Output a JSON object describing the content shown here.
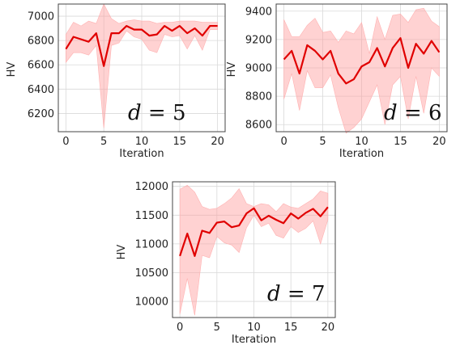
{
  "colors": {
    "mean_line": "#e00000",
    "band": "#ff9c9c"
  },
  "chart_data": [
    {
      "type": "line",
      "annotation": "d = 5",
      "xlabel": "Iteration",
      "ylabel": "HV",
      "xlim": [
        -1,
        21
      ],
      "ylim": [
        6050,
        7100
      ],
      "xticks": [
        0,
        5,
        10,
        15,
        20
      ],
      "yticks": [
        6200,
        6400,
        6600,
        6800,
        7000
      ],
      "grid": true,
      "x": [
        0,
        1,
        2,
        3,
        4,
        5,
        6,
        7,
        8,
        9,
        10,
        11,
        12,
        13,
        14,
        15,
        16,
        17,
        18,
        19,
        20
      ],
      "series": [
        {
          "values": [
            6730,
            6830,
            6810,
            6790,
            6860,
            6590,
            6860,
            6860,
            6920,
            6890,
            6890,
            6840,
            6850,
            6920,
            6880,
            6920,
            6860,
            6900,
            6840,
            6920,
            6920
          ]
        }
      ],
      "band_upper": [
        6850,
        6950,
        6920,
        6960,
        6940,
        7100,
        6980,
        6940,
        6960,
        6970,
        6960,
        6960,
        6940,
        6950,
        6950,
        6960,
        6960,
        6960,
        6950,
        6950,
        6950
      ],
      "band_lower": [
        6620,
        6700,
        6700,
        6680,
        6760,
        6080,
        6760,
        6780,
        6880,
        6830,
        6810,
        6720,
        6700,
        6850,
        6830,
        6840,
        6730,
        6840,
        6720,
        6890,
        6890
      ]
    },
    {
      "type": "line",
      "annotation": "d = 6",
      "xlabel": "Iteration",
      "ylabel": "HV",
      "xlim": [
        -1,
        21
      ],
      "ylim": [
        8550,
        9450
      ],
      "xticks": [
        0,
        5,
        10,
        15,
        20
      ],
      "yticks": [
        8600,
        8800,
        9000,
        9200,
        9400
      ],
      "grid": true,
      "x": [
        0,
        1,
        2,
        3,
        4,
        5,
        6,
        7,
        8,
        9,
        10,
        11,
        12,
        13,
        14,
        15,
        16,
        17,
        18,
        19,
        20
      ],
      "series": [
        {
          "values": [
            9060,
            9120,
            8960,
            9160,
            9120,
            9060,
            9120,
            8960,
            8890,
            8920,
            9010,
            9040,
            9140,
            9010,
            9140,
            9210,
            9000,
            9170,
            9100,
            9190,
            9110
          ]
        }
      ],
      "band_upper": [
        9340,
        9220,
        9220,
        9300,
        9350,
        9250,
        9260,
        9180,
        9260,
        9240,
        9320,
        9100,
        9360,
        9200,
        9370,
        9380,
        9320,
        9410,
        9420,
        9330,
        9290
      ],
      "band_lower": [
        8780,
        8960,
        8700,
        8980,
        8860,
        8860,
        8950,
        8720,
        8540,
        8580,
        8640,
        8760,
        8880,
        8600,
        8880,
        8940,
        8640,
        8940,
        8680,
        9000,
        8940
      ]
    },
    {
      "type": "line",
      "annotation": "d = 7",
      "xlabel": "Iteration",
      "ylabel": "HV",
      "xlim": [
        -1,
        21
      ],
      "ylim": [
        9720,
        12080
      ],
      "xticks": [
        0,
        5,
        10,
        15,
        20
      ],
      "yticks": [
        10000,
        10500,
        11000,
        11500,
        12000
      ],
      "grid": true,
      "x": [
        0,
        1,
        2,
        3,
        4,
        5,
        6,
        7,
        8,
        9,
        10,
        11,
        12,
        13,
        14,
        15,
        16,
        17,
        18,
        19,
        20
      ],
      "series": [
        {
          "values": [
            10790,
            11180,
            10790,
            11230,
            11190,
            11370,
            11390,
            11290,
            11320,
            11530,
            11620,
            11410,
            11490,
            11420,
            11360,
            11530,
            11440,
            11540,
            11610,
            11480,
            11640
          ]
        }
      ],
      "band_upper": [
        11950,
        12020,
        11900,
        11650,
        11600,
        11620,
        11700,
        11800,
        11960,
        11700,
        11650,
        11700,
        11680,
        11560,
        11700,
        11640,
        11620,
        11700,
        11780,
        11920,
        11880
      ],
      "band_lower": [
        9780,
        10400,
        9760,
        10800,
        10760,
        11130,
        11020,
        10980,
        10850,
        11280,
        11500,
        11300,
        11360,
        11150,
        11100,
        11300,
        11200,
        11270,
        11400,
        11000,
        11420
      ]
    }
  ]
}
